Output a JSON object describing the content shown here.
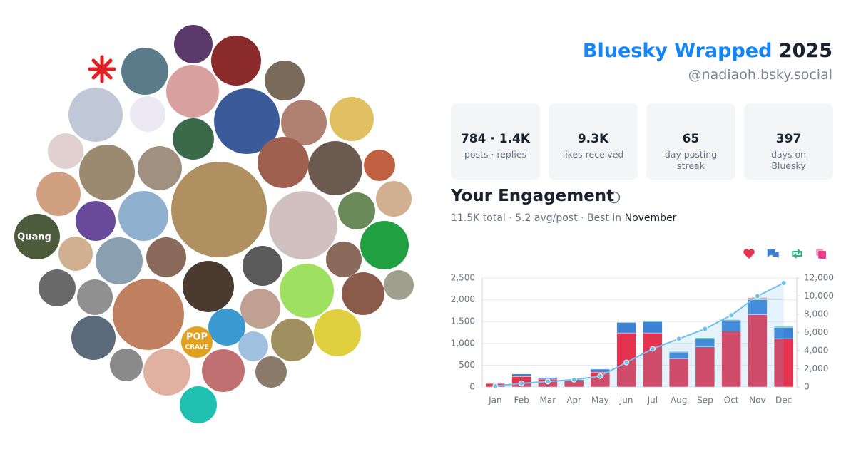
{
  "header": {
    "title": "Bluesky Wrapped",
    "year": "2025",
    "handle": "@nadiaoh.bsky.social"
  },
  "stats": [
    {
      "value": "784 · 1.4K",
      "label": "posts · replies"
    },
    {
      "value": "9.3K",
      "label": "likes received"
    },
    {
      "value": "65",
      "label": "day posting streak"
    },
    {
      "value": "397",
      "label": "days on Bluesky"
    }
  ],
  "engagement": {
    "title": "Your Engagement",
    "summary": "11.5K total · 5.2 avg/post · Best in",
    "best_month": "November"
  },
  "collage": {
    "labels": [
      "Quang",
      "POP",
      "CRAVE"
    ]
  },
  "chart_data": {
    "type": "bar",
    "stacked": true,
    "grid": true,
    "categories": [
      "Jan",
      "Feb",
      "Mar",
      "Apr",
      "May",
      "Jun",
      "Jul",
      "Aug",
      "Sep",
      "Oct",
      "Nov",
      "Dec"
    ],
    "series": [
      {
        "color": "#e5334f",
        "values": [
          80,
          240,
          180,
          140,
          340,
          1240,
          1240,
          650,
          920,
          1280,
          1660,
          1110
        ]
      },
      {
        "color": "#3b82d6",
        "values": [
          20,
          60,
          40,
          30,
          70,
          240,
          260,
          150,
          190,
          240,
          340,
          250
        ]
      },
      {
        "color": "#22b573",
        "values": [
          3,
          5,
          5,
          3,
          10,
          15,
          15,
          15,
          20,
          25,
          30,
          25
        ]
      },
      {
        "color": "#ec3c8c",
        "values": [
          2,
          5,
          3,
          2,
          5,
          5,
          5,
          5,
          5,
          5,
          20,
          10
        ]
      },
      {
        "type": "line",
        "axis": "y2",
        "color": "#6fc0ee",
        "values": [
          100,
          400,
          600,
          800,
          1200,
          2700,
          4200,
          5300,
          6400,
          7900,
          10000,
          11450
        ]
      }
    ],
    "ylim": [
      0,
      2500
    ],
    "yticks": [
      0,
      500,
      {
        "value": 1000,
        "label": "1,000"
      },
      {
        "value": 1500,
        "label": "1,500"
      },
      {
        "value": 2000,
        "label": "2,000"
      },
      {
        "value": 2500,
        "label": "2,500"
      }
    ],
    "y2lim": [
      0,
      12000
    ],
    "y2ticks": [
      0,
      {
        "value": 2000,
        "label": "2,000"
      },
      {
        "value": 4000,
        "label": "4,000"
      },
      {
        "value": 6000,
        "label": "6,000"
      },
      {
        "value": 8000,
        "label": "8,000"
      },
      {
        "value": 10000,
        "label": "10,000"
      },
      {
        "value": 12000,
        "label": "12,000"
      }
    ]
  }
}
